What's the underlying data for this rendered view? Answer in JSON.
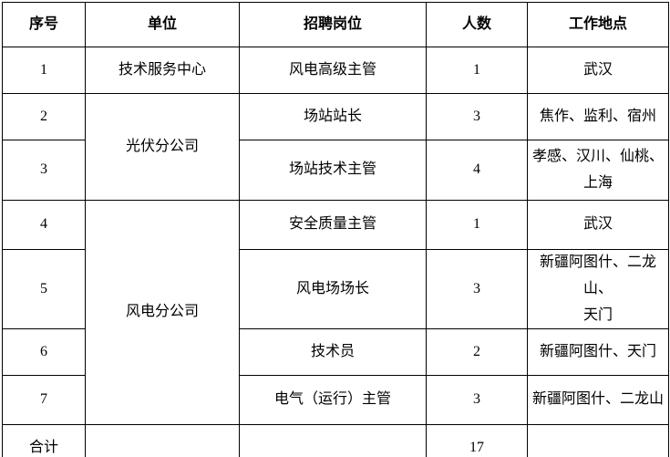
{
  "table": {
    "headers": {
      "serial": "序号",
      "unit": "单位",
      "position": "招聘岗位",
      "count": "人数",
      "location": "工作地点"
    },
    "rows": [
      {
        "no": "1",
        "unit": "技术服务中心",
        "position": "风电高级主管",
        "count": "1",
        "location": "武汉"
      },
      {
        "no": "2",
        "unit": "光伏分公司",
        "position": "场站站长",
        "count": "3",
        "location": "焦作、监利、宿州"
      },
      {
        "no": "3",
        "position": "场站技术主管",
        "count": "4",
        "location": "孝感、汉川、仙桃、\n上海"
      },
      {
        "no": "4",
        "unit": "风电分公司",
        "position": "安全质量主管",
        "count": "1",
        "location": "武汉"
      },
      {
        "no": "5",
        "position": "风电场场长",
        "count": "3",
        "location": "新疆阿图什、二龙山、\n天门"
      },
      {
        "no": "6",
        "position": "技术员",
        "count": "2",
        "location": "新疆阿图什、天门"
      },
      {
        "no": "7",
        "position": "电气（运行）主管",
        "count": "3",
        "location": "新疆阿图什、二龙山"
      }
    ],
    "total_row": {
      "label": "合计",
      "count": "17"
    }
  },
  "colors": {
    "border": "#000000",
    "background": "#ffffff",
    "text": "#000000"
  }
}
